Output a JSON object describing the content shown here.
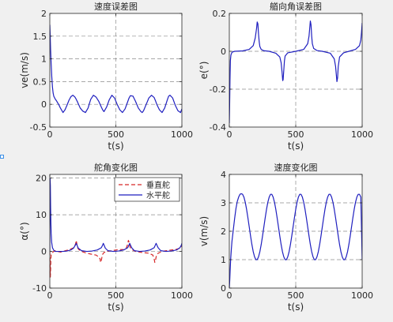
{
  "figure": {
    "background": "#f0f0f0"
  },
  "chart_data": [
    {
      "id": "speed-error",
      "type": "line",
      "title": "速度误差图",
      "xlabel": "t(s)",
      "ylabel": "ve(m/s)",
      "xlim": [
        0,
        1000
      ],
      "ylim": [
        -0.5,
        2
      ],
      "xticks": [
        0,
        500,
        1000
      ],
      "yticks": [
        -0.5,
        0,
        0.5,
        1,
        1.5,
        2
      ],
      "xtick_labels": [
        "0",
        "500",
        "1000"
      ],
      "ytick_labels": [
        "-0.5",
        "0",
        "0.5",
        "1",
        "1.5",
        "2"
      ],
      "grid": true,
      "series": [
        {
          "color": "#1f1fbf",
          "style": "solid",
          "x": [
            0,
            3,
            6,
            10,
            15,
            20,
            25,
            30,
            40,
            50,
            60,
            70,
            80,
            90,
            100,
            115,
            130,
            145,
            160,
            175,
            190,
            200,
            210,
            230,
            250,
            270,
            290,
            300,
            310,
            330,
            350,
            370,
            390,
            400,
            410,
            430,
            450,
            470,
            490,
            500,
            510,
            530,
            550,
            570,
            590,
            600,
            610,
            630,
            650,
            670,
            690,
            700,
            710,
            730,
            750,
            770,
            790,
            800,
            810,
            830,
            850,
            870,
            890,
            900,
            910,
            930,
            950,
            970,
            990,
            1000
          ],
          "y": [
            1.75,
            1.5,
            1.2,
            0.9,
            0.6,
            0.38,
            0.25,
            0.18,
            0.12,
            0.08,
            0.03,
            -0.02,
            -0.08,
            -0.13,
            -0.18,
            -0.12,
            -0.02,
            0.09,
            0.17,
            0.2,
            0.16,
            0.11,
            0.05,
            -0.08,
            -0.15,
            -0.18,
            -0.08,
            0.02,
            0.11,
            0.2,
            0.16,
            0.07,
            -0.06,
            -0.12,
            -0.16,
            -0.06,
            0.1,
            0.2,
            0.14,
            0.07,
            0.0,
            -0.12,
            -0.18,
            -0.1,
            0.06,
            0.14,
            0.19,
            0.18,
            0.06,
            -0.08,
            -0.16,
            -0.18,
            -0.14,
            0.0,
            0.14,
            0.2,
            0.15,
            0.08,
            0.0,
            -0.12,
            -0.18,
            -0.08,
            0.1,
            0.18,
            0.2,
            0.14,
            -0.02,
            -0.14,
            -0.18,
            -0.1
          ]
        }
      ]
    },
    {
      "id": "heading-error",
      "type": "line",
      "title": "艏向角误差图",
      "xlabel": "t(s)",
      "ylabel": "e(°)",
      "xlim": [
        0,
        1000
      ],
      "ylim": [
        -0.4,
        0.2
      ],
      "xticks": [
        0,
        500,
        1000
      ],
      "yticks": [
        -0.4,
        -0.2,
        0,
        0.2
      ],
      "xtick_labels": [
        "0",
        "500",
        "1000"
      ],
      "ytick_labels": [
        "-0.4",
        "-0.2",
        "0",
        "0.2"
      ],
      "grid": true,
      "series": [
        {
          "color": "#1f1fbf",
          "style": "solid",
          "x": [
            0,
            2,
            5,
            8,
            12,
            20,
            40,
            100,
            150,
            180,
            195,
            205,
            210,
            215,
            220,
            225,
            230,
            240,
            260,
            300,
            350,
            380,
            390,
            397,
            402,
            405,
            410,
            415,
            420,
            440,
            500,
            560,
            590,
            600,
            605,
            610,
            615,
            620,
            625,
            635,
            660,
            700,
            760,
            790,
            800,
            805,
            810,
            815,
            820,
            830,
            860,
            900,
            950,
            980,
            990,
            995,
            1000
          ],
          "y": [
            -0.38,
            -0.3,
            -0.15,
            -0.05,
            -0.02,
            -0.005,
            0,
            0.002,
            0.01,
            0.03,
            0.07,
            0.12,
            0.155,
            0.145,
            0.09,
            0.05,
            0.025,
            0.01,
            0.003,
            0,
            -0.01,
            -0.03,
            -0.06,
            -0.11,
            -0.155,
            -0.15,
            -0.1,
            -0.05,
            -0.025,
            -0.008,
            0,
            0.01,
            0.04,
            0.08,
            0.12,
            0.16,
            0.14,
            0.08,
            0.04,
            0.015,
            0.004,
            0,
            -0.01,
            -0.04,
            -0.08,
            -0.12,
            -0.16,
            -0.14,
            -0.08,
            -0.03,
            -0.008,
            0,
            0.01,
            0.03,
            0.06,
            0.1,
            0.15
          ]
        }
      ]
    },
    {
      "id": "rudder-angle",
      "type": "line",
      "title": "舵角变化图",
      "xlabel": "t(s)",
      "ylabel": "α(°)",
      "xlim": [
        0,
        1000
      ],
      "ylim": [
        -10,
        21
      ],
      "xticks": [
        0,
        500,
        1000
      ],
      "yticks": [
        -10,
        0,
        10,
        20
      ],
      "xtick_labels": [
        "0",
        "500",
        "1000"
      ],
      "ytick_labels": [
        "-10",
        "0",
        "10",
        "20"
      ],
      "grid": true,
      "legend": {
        "position": "top-right",
        "entries": [
          "垂直舵",
          "水平舵"
        ]
      },
      "series": [
        {
          "name": "垂直舵",
          "color": "#d62728",
          "style": "dashed",
          "x": [
            0,
            2,
            4,
            6,
            8,
            10,
            14,
            20,
            30,
            40,
            60,
            80,
            100,
            120,
            150,
            180,
            195,
            200,
            205,
            210,
            220,
            240,
            280,
            320,
            350,
            370,
            380,
            385,
            390,
            395,
            400,
            410,
            430,
            470,
            520,
            560,
            580,
            590,
            595,
            600,
            605,
            610,
            620,
            650,
            700,
            750,
            780,
            790,
            795,
            800,
            805,
            810,
            820,
            850,
            900,
            950,
            980,
            990,
            995,
            1000
          ],
          "y": [
            0,
            -3,
            -7,
            -5,
            -2,
            -1,
            -0.5,
            -0.3,
            0,
            0.2,
            0,
            -0.2,
            0,
            0.2,
            0.5,
            1,
            2,
            3,
            2,
            1,
            0.5,
            0,
            -0.5,
            -0.8,
            -1,
            -1.5,
            -2,
            -3,
            -2.5,
            -1.5,
            -0.8,
            -0.3,
            0,
            0.2,
            0.5,
            0.5,
            1,
            2,
            3,
            2.5,
            1.5,
            1,
            0.5,
            0,
            -0.3,
            -0.5,
            -1,
            -2,
            -3,
            -2.5,
            -1.5,
            -1,
            -0.5,
            0,
            0.3,
            0.5,
            0.8,
            1.2,
            1.5,
            1.2
          ]
        },
        {
          "name": "水平舵",
          "color": "#1f1fbf",
          "style": "solid",
          "x": [
            0,
            1,
            2,
            4,
            6,
            8,
            10,
            14,
            20,
            30,
            40,
            60,
            80,
            100,
            130,
            160,
            180,
            195,
            200,
            205,
            215,
            240,
            280,
            320,
            360,
            390,
            400,
            405,
            410,
            420,
            440,
            480,
            520,
            560,
            590,
            600,
            605,
            610,
            620,
            640,
            680,
            720,
            760,
            790,
            800,
            805,
            810,
            820,
            840,
            880,
            920,
            960,
            985,
            995,
            1000
          ],
          "y": [
            0,
            15,
            20,
            18,
            12,
            8,
            5,
            2.5,
            1,
            0.3,
            0,
            0,
            0,
            0,
            0.1,
            0.4,
            0.9,
            1.8,
            2.2,
            1.8,
            0.9,
            0.2,
            0,
            0.1,
            0.4,
            1,
            1.7,
            2.2,
            1.8,
            0.9,
            0.2,
            0,
            0.1,
            0.4,
            1,
            1.8,
            2.2,
            1.8,
            1,
            0.2,
            0,
            0.1,
            0.4,
            1,
            1.8,
            2.2,
            1.8,
            1,
            0.2,
            0,
            0.1,
            0.4,
            1.0,
            1.6,
            2.2
          ]
        }
      ]
    },
    {
      "id": "speed-change",
      "type": "line",
      "title": "速度变化图",
      "xlabel": "t(s)",
      "ylabel": "v(m/s)",
      "xlim": [
        0,
        1000
      ],
      "ylim": [
        0,
        4
      ],
      "xticks": [
        0,
        500,
        1000
      ],
      "yticks": [
        0,
        1,
        2,
        3,
        4
      ],
      "xtick_labels": [
        "0",
        "500",
        "1000"
      ],
      "ytick_labels": [
        "0",
        "1",
        "2",
        "3",
        "4"
      ],
      "grid": true,
      "series": [
        {
          "color": "#1f1fbf",
          "style": "solid",
          "x": [
            0,
            3,
            6,
            10,
            15,
            20,
            30,
            40,
            50,
            60,
            70,
            80,
            90,
            100,
            110,
            120,
            130,
            140,
            150,
            160,
            170,
            180,
            190,
            200,
            210,
            220,
            230,
            240,
            250,
            260,
            270,
            280,
            290,
            300,
            310,
            320,
            330,
            340,
            350,
            360,
            370,
            380,
            390,
            400,
            410,
            420,
            430,
            440,
            450,
            460,
            470,
            480,
            490,
            500,
            510,
            520,
            530,
            540,
            550,
            560,
            570,
            580,
            590,
            600,
            610,
            620,
            630,
            640,
            650,
            660,
            670,
            680,
            690,
            700,
            710,
            720,
            730,
            740,
            750,
            760,
            770,
            780,
            790,
            800,
            810,
            820,
            830,
            840,
            850,
            860,
            870,
            880,
            890,
            900,
            910,
            920,
            930,
            940,
            950,
            960,
            970,
            980,
            990,
            1000
          ],
          "y": [
            0,
            0.25,
            0.6,
            1.0,
            1.35,
            1.65,
            2.05,
            2.45,
            2.8,
            3.05,
            3.2,
            3.3,
            3.32,
            3.3,
            3.2,
            3.02,
            2.77,
            2.47,
            2.15,
            1.83,
            1.53,
            1.28,
            1.1,
            1.0,
            1.0,
            1.1,
            1.28,
            1.53,
            1.83,
            2.15,
            2.47,
            2.77,
            3.02,
            3.2,
            3.3,
            3.3,
            3.2,
            3.02,
            2.77,
            2.47,
            2.15,
            1.83,
            1.53,
            1.28,
            1.1,
            1.0,
            1.0,
            1.1,
            1.28,
            1.53,
            1.83,
            2.15,
            2.47,
            2.77,
            3.02,
            3.2,
            3.3,
            3.3,
            3.2,
            3.02,
            2.77,
            2.47,
            2.15,
            1.83,
            1.53,
            1.28,
            1.1,
            1.0,
            1.0,
            1.1,
            1.28,
            1.53,
            1.83,
            2.15,
            2.47,
            2.77,
            3.02,
            3.2,
            3.3,
            3.3,
            3.2,
            3.02,
            2.77,
            2.47,
            2.15,
            1.83,
            1.53,
            1.28,
            1.1,
            1.0,
            1.0,
            1.1,
            1.28,
            1.53,
            1.83,
            2.15,
            2.47,
            2.77,
            3.02,
            3.2,
            3.3,
            3.3,
            3.2,
            1.0
          ]
        }
      ]
    }
  ]
}
